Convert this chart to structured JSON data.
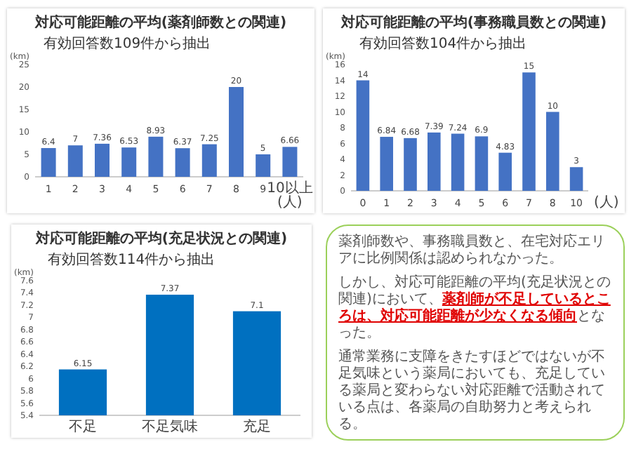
{
  "chart_data": [
    {
      "type": "bar",
      "title": "対応可能距離の平均(薬剤師数との関連)",
      "ylabel": "(km)",
      "annotations": [
        "有効回答数109件から抽出"
      ],
      "categories": [
        "1",
        "2",
        "3",
        "4",
        "5",
        "6",
        "7",
        "8",
        "9",
        "10以上(人)"
      ],
      "values": [
        6.4,
        7,
        7.36,
        6.53,
        8.93,
        6.37,
        7.25,
        20,
        5,
        6.66
      ],
      "color": "#4472c4",
      "ylim": [
        0,
        25
      ],
      "yticks": [
        0,
        5,
        10,
        15,
        20,
        25
      ],
      "data_labels": true
    },
    {
      "type": "bar",
      "title": "対応可能距離の平均(事務職員数との関連)",
      "ylabel": "(km)",
      "xlabel": "(人)",
      "annotations": [
        "有効回答数104件から抽出"
      ],
      "categories": [
        "0",
        "1",
        "2",
        "3",
        "4",
        "5",
        "6",
        "7",
        "8",
        "10"
      ],
      "values": [
        14,
        6.84,
        6.68,
        7.39,
        7.24,
        6.9,
        4.83,
        15,
        10,
        3
      ],
      "color": "#4472c4",
      "ylim": [
        0,
        16
      ],
      "yticks": [
        0,
        2,
        4,
        6,
        8,
        10,
        12,
        14,
        16
      ],
      "data_labels": true
    },
    {
      "type": "bar",
      "title": "対応可能距離の平均(充足状況との関連)",
      "ylabel": "(km)",
      "annotations": [
        "有効回答数114件から抽出"
      ],
      "categories": [
        "不足",
        "不足気味",
        "充足"
      ],
      "values": [
        6.15,
        7.37,
        7.1
      ],
      "color": "#0070c0",
      "ylim": [
        5.4,
        7.6
      ],
      "yticks": [
        5.4,
        5.6,
        5.8,
        6,
        6.2,
        6.4,
        6.6,
        6.8,
        7,
        7.2,
        7.4,
        7.6
      ],
      "data_labels": true
    },
    {
      "type": "other",
      "annotations": [
        "薬剤師数や、事務職員数と、在宅対応エリアに比例関係は認められなかった。",
        "しかし、対応可能距離の平均(充足状況との関連)において、**薬剤師が不足しているところは、対応可能距離が少なくなる傾向**となった。",
        "通常業務に支障をきたすほどではないが不足気味という薬局においても、充足している薬局と変わらない対応距離で活動されている点は、各薬局の自助努力と考えられる。"
      ]
    }
  ]
}
